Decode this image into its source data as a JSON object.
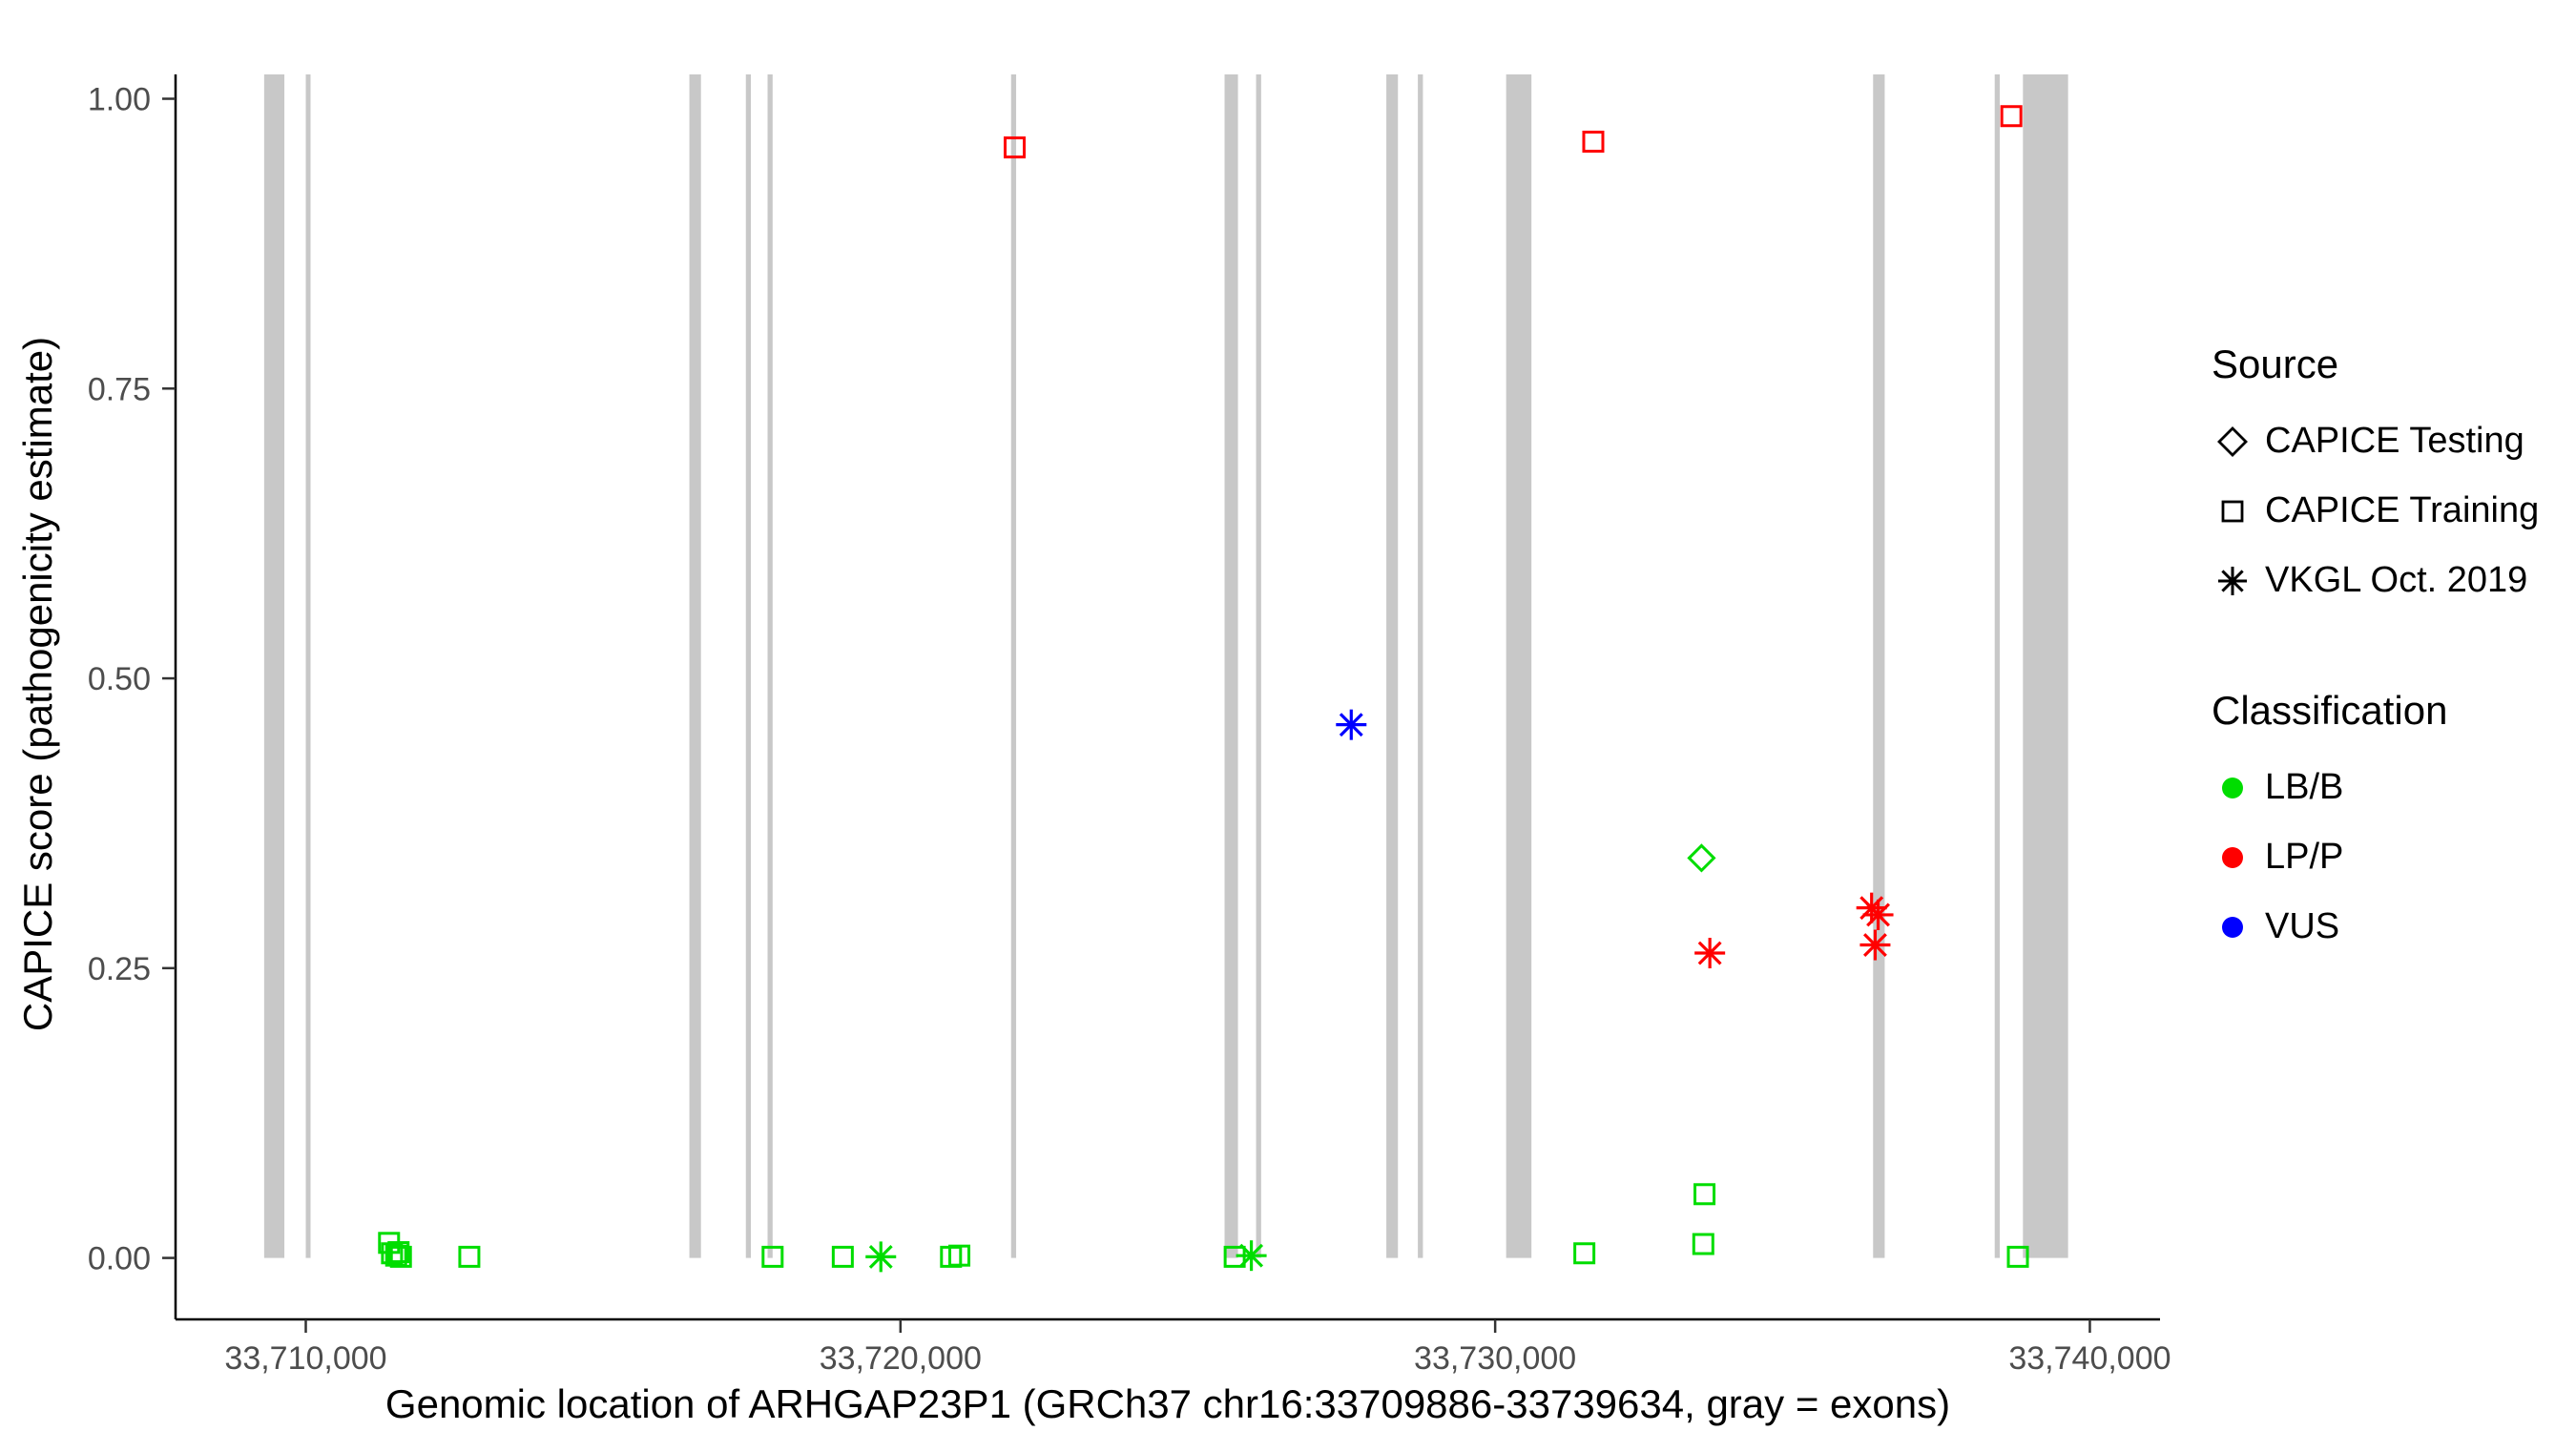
{
  "chart_data": {
    "type": "scatter",
    "title": "",
    "xlabel": "Genomic location of ARHGAP23P1 (GRCh37 chr16:33709886-33739634, gray = exons)",
    "ylabel": "CAPICE score (pathogenicity estimate)",
    "xlim": [
      33707810,
      33741180
    ],
    "ylim": [
      -0.053,
      1.021
    ],
    "x_ticks": [
      {
        "value": 33710000,
        "label": "33,710,000"
      },
      {
        "value": 33720000,
        "label": "33,720,000"
      },
      {
        "value": 33730000,
        "label": "33,730,000"
      },
      {
        "value": 33740000,
        "label": "33,740,000"
      }
    ],
    "y_ticks": [
      {
        "value": 0.0,
        "label": "0.00"
      },
      {
        "value": 0.25,
        "label": "0.25"
      },
      {
        "value": 0.5,
        "label": "0.50"
      },
      {
        "value": 0.75,
        "label": "0.75"
      },
      {
        "value": 1.0,
        "label": "1.00"
      }
    ],
    "colors": {
      "lbb": "#00DD00",
      "lpp": "#FF0000",
      "vus": "#0000FF",
      "exon": "#C8C8C8"
    },
    "exons": [
      {
        "start": 33709300,
        "end": 33709640
      },
      {
        "start": 33710000,
        "end": 33710080
      },
      {
        "start": 33716450,
        "end": 33716645
      },
      {
        "start": 33717400,
        "end": 33717485
      },
      {
        "start": 33717765,
        "end": 33717850
      },
      {
        "start": 33721860,
        "end": 33721945
      },
      {
        "start": 33725450,
        "end": 33725675
      },
      {
        "start": 33725980,
        "end": 33726065
      },
      {
        "start": 33728170,
        "end": 33728365
      },
      {
        "start": 33728700,
        "end": 33728785
      },
      {
        "start": 33730185,
        "end": 33730610
      },
      {
        "start": 33736355,
        "end": 33736550
      },
      {
        "start": 33738400,
        "end": 33738485
      },
      {
        "start": 33738875,
        "end": 33739634
      }
    ],
    "points": [
      {
        "x": 33711400,
        "y": 0.013,
        "source": "training",
        "cls": "lbb"
      },
      {
        "x": 33711450,
        "y": 0.004,
        "source": "training",
        "cls": "lbb"
      },
      {
        "x": 33711520,
        "y": 0.002,
        "source": "training",
        "cls": "lbb"
      },
      {
        "x": 33711560,
        "y": 0.005,
        "source": "training",
        "cls": "lbb"
      },
      {
        "x": 33711600,
        "y": 0.001,
        "source": "training",
        "cls": "lbb"
      },
      {
        "x": 33712750,
        "y": 0.001,
        "source": "training",
        "cls": "lbb"
      },
      {
        "x": 33717850,
        "y": 0.001,
        "source": "training",
        "cls": "lbb"
      },
      {
        "x": 33719030,
        "y": 0.001,
        "source": "training",
        "cls": "lbb"
      },
      {
        "x": 33719670,
        "y": 0.001,
        "source": "vkgl",
        "cls": "lbb"
      },
      {
        "x": 33720850,
        "y": 0.001,
        "source": "training",
        "cls": "lbb"
      },
      {
        "x": 33720990,
        "y": 0.002,
        "source": "training",
        "cls": "lbb"
      },
      {
        "x": 33721920,
        "y": 0.958,
        "source": "training",
        "cls": "lpp"
      },
      {
        "x": 33725620,
        "y": 0.001,
        "source": "training",
        "cls": "lbb"
      },
      {
        "x": 33725900,
        "y": 0.002,
        "source": "vkgl",
        "cls": "lbb"
      },
      {
        "x": 33727580,
        "y": 0.46,
        "source": "vkgl",
        "cls": "vus"
      },
      {
        "x": 33731500,
        "y": 0.004,
        "source": "training",
        "cls": "lbb"
      },
      {
        "x": 33731650,
        "y": 0.963,
        "source": "training",
        "cls": "lpp"
      },
      {
        "x": 33733470,
        "y": 0.345,
        "source": "testing",
        "cls": "lbb"
      },
      {
        "x": 33733520,
        "y": 0.055,
        "source": "training",
        "cls": "lbb"
      },
      {
        "x": 33733500,
        "y": 0.012,
        "source": "training",
        "cls": "lbb"
      },
      {
        "x": 33733610,
        "y": 0.263,
        "source": "vkgl",
        "cls": "lpp"
      },
      {
        "x": 33736330,
        "y": 0.302,
        "source": "vkgl",
        "cls": "lpp"
      },
      {
        "x": 33736440,
        "y": 0.296,
        "source": "vkgl",
        "cls": "lpp"
      },
      {
        "x": 33736390,
        "y": 0.27,
        "source": "vkgl",
        "cls": "lpp"
      },
      {
        "x": 33738680,
        "y": 0.985,
        "source": "training",
        "cls": "lpp"
      },
      {
        "x": 33738790,
        "y": 0.001,
        "source": "training",
        "cls": "lbb"
      }
    ]
  },
  "legend": {
    "source": {
      "title": "Source",
      "items": [
        {
          "label": "CAPICE Testing",
          "marker": "diamond-open"
        },
        {
          "label": "CAPICE Training",
          "marker": "square-open"
        },
        {
          "label": "VKGL Oct. 2019",
          "marker": "asterisk"
        }
      ]
    },
    "classification": {
      "title": "Classification",
      "items": [
        {
          "label": "LB/B",
          "color": "#00DD00"
        },
        {
          "label": "LP/P",
          "color": "#FF0000"
        },
        {
          "label": "VUS",
          "color": "#0000FF"
        }
      ]
    }
  }
}
